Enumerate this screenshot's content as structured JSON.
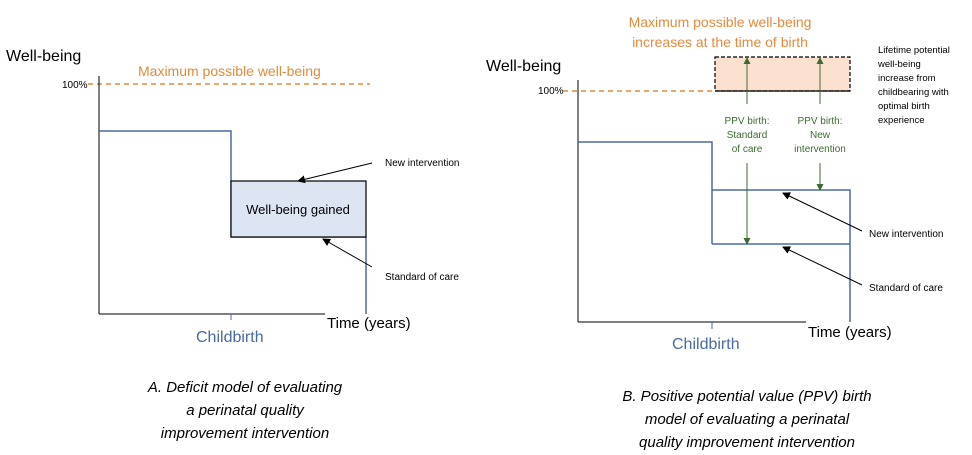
{
  "panel_a": {
    "y_axis_label": "Well-being",
    "x_axis_label": "Time (years)",
    "hundred_percent": "100%",
    "max_line_label": "Maximum possible well-being",
    "childbirth": "Childbirth",
    "box_label": "Well-being gained",
    "new_intervention": "New intervention",
    "standard_of_care": "Standard of care",
    "caption": [
      "A. Deficit model of evaluating",
      "a perinatal quality",
      "improvement intervention"
    ]
  },
  "panel_b": {
    "y_axis_label": "Well-being",
    "x_axis_label": "Time (years)",
    "hundred_percent": "100%",
    "max_label": [
      "Maximum possible well-being",
      "increases at the time of birth"
    ],
    "childbirth": "Childbirth",
    "lifetime_note": [
      "Lifetime potential",
      "well-being",
      "increase from",
      "childbearing with",
      "optimal birth",
      "experience"
    ],
    "ppv_standard": [
      "PPV birth:",
      "Standard",
      "of care"
    ],
    "ppv_new": [
      "PPV birth:",
      "New",
      "intervention"
    ],
    "new_intervention": "New intervention",
    "standard_of_care": "Standard of care",
    "caption": [
      "B. Positive potential value (PPV) birth",
      "model of evaluating a perinatal",
      "quality improvement intervention"
    ]
  },
  "colors": {
    "orange": "#e48a3c",
    "blue": "#4a6aa4",
    "box_fill": "#dde5f3",
    "peach_fill": "#fbe0cf",
    "green": "#3c6b2f"
  }
}
